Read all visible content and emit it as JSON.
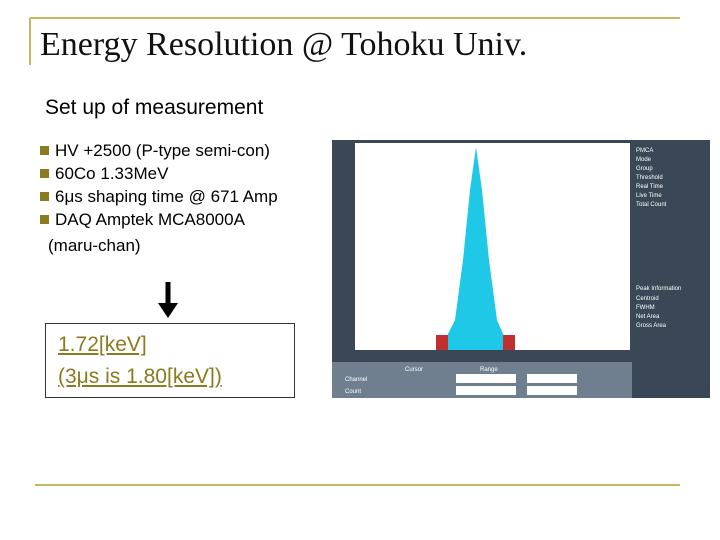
{
  "header": {
    "title": "Energy Resolution @ Tohoku Univ."
  },
  "subtitle": "Set up of measurement",
  "bullets": [
    "HV +2500 (P-type semi-con)",
    "60Co 1.33MeV",
    "6μs shaping time @ 671 Amp",
    "DAQ Amptek MCA8000A"
  ],
  "bullet_note": "(maru-chan)",
  "result": [
    "1.72[keV]",
    "(3μs is 1.80[keV])"
  ],
  "screenshot": {
    "status_labels": [
      "PMCA",
      "Mode",
      "Group",
      "Threshold",
      "Real Time",
      "Live Time",
      "Total Count"
    ],
    "peak_heading": "Peak Information",
    "peak_labels": [
      "Centroid",
      "FWHM",
      "Net Area",
      "Gross Area"
    ],
    "table_headers": [
      "Cursor",
      "Range"
    ],
    "table_rows": [
      "Channel",
      "Count"
    ]
  }
}
